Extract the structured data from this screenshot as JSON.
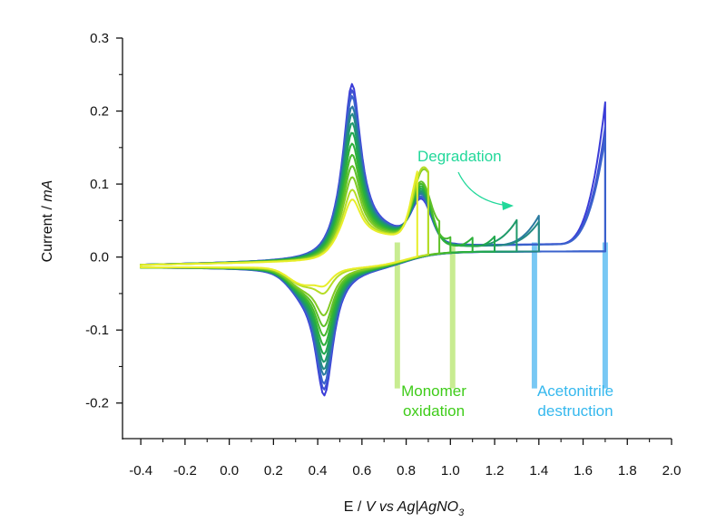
{
  "chart_data": {
    "type": "line",
    "title": "",
    "xlabel": {
      "prefix": "E / ",
      "var": "V",
      "mid": " vs ",
      "ref": "Ag|AgNO",
      "sub": "3"
    },
    "ylabel": {
      "prefix": "Current / ",
      "unit": "mA"
    },
    "xlim": [
      -0.4,
      2.0
    ],
    "ylim": [
      -0.25,
      0.3
    ],
    "x_ticks": [
      {
        "value": -0.4,
        "label": "-0.4"
      },
      {
        "value": -0.2,
        "label": "-0.2"
      },
      {
        "value": 0.0,
        "label": "0.0"
      },
      {
        "value": 0.2,
        "label": "0.2"
      },
      {
        "value": 0.4,
        "label": "0.4"
      },
      {
        "value": 0.6,
        "label": "0.6"
      },
      {
        "value": 0.8,
        "label": "0.8"
      },
      {
        "value": 1.0,
        "label": "1.0"
      },
      {
        "value": 1.2,
        "label": "1.2"
      },
      {
        "value": 1.4,
        "label": "1.4"
      },
      {
        "value": 1.6,
        "label": "1.6"
      },
      {
        "value": 1.8,
        "label": "1.8"
      },
      {
        "value": 2.0,
        "label": "2.0"
      }
    ],
    "y_ticks": [
      {
        "value": -0.2,
        "label": "-0.2"
      },
      {
        "value": -0.1,
        "label": "-0.1"
      },
      {
        "value": 0.0,
        "label": "0.0"
      },
      {
        "value": 0.1,
        "label": "0.1"
      },
      {
        "value": 0.2,
        "label": "0.2"
      },
      {
        "value": 0.3,
        "label": "0.3"
      }
    ],
    "grid": false,
    "legend": "none",
    "series": [
      {
        "vertex": 1.7,
        "ipa": 0.23,
        "ipc": -0.2,
        "iend": 0.213,
        "color": "#3a3cd8"
      },
      {
        "vertex": 1.7,
        "ipa": 0.222,
        "ipc": -0.192,
        "iend": 0.18,
        "color": "#3f52d2"
      },
      {
        "vertex": 1.7,
        "ipa": 0.214,
        "ipc": -0.184,
        "iend": 0.165,
        "color": "#3a62cc"
      },
      {
        "vertex": 1.4,
        "ipa": 0.2,
        "ipc": -0.172,
        "iend": 0.06,
        "color": "#2a7aa0"
      },
      {
        "vertex": 1.4,
        "ipa": 0.19,
        "ipc": -0.164,
        "iend": 0.052,
        "color": "#248a84"
      },
      {
        "vertex": 1.3,
        "ipa": 0.178,
        "ipc": -0.154,
        "iend": 0.055,
        "color": "#1f9a6a"
      },
      {
        "vertex": 1.2,
        "ipa": 0.165,
        "ipc": -0.143,
        "iend": 0.052,
        "color": "#22a84e"
      },
      {
        "vertex": 1.1,
        "ipa": 0.15,
        "ipc": -0.131,
        "iend": 0.05,
        "color": "#2db03a"
      },
      {
        "vertex": 1.0,
        "ipa": 0.135,
        "ipc": -0.118,
        "iend": 0.048,
        "color": "#45b92c"
      },
      {
        "vertex": 0.95,
        "ipa": 0.12,
        "ipc": -0.105,
        "iend": 0.06,
        "color": "#60c128"
      },
      {
        "vertex": 0.9,
        "ipa": 0.105,
        "ipc": -0.09,
        "iend": 0.08,
        "color": "#82ca24"
      },
      {
        "vertex": 0.9,
        "ipa": 0.088,
        "ipc": -0.06,
        "iend": 0.078,
        "color": "#b6dc26"
      },
      {
        "vertex": 0.85,
        "ipa": 0.075,
        "ipc": -0.05,
        "iend": 0.05,
        "color": "#e8ee2a"
      }
    ],
    "markers": [
      {
        "x": 0.76,
        "color": "#c6ec8c",
        "group": "monomer"
      },
      {
        "x": 1.01,
        "color": "#c6ec8c",
        "group": "monomer"
      },
      {
        "x": 1.38,
        "color": "#71c6f4",
        "group": "acetonitrile"
      },
      {
        "x": 1.7,
        "color": "#71c6f4",
        "group": "acetonitrile"
      }
    ],
    "annotations": {
      "degradation": {
        "text": "Degradation",
        "color": "#22d89a"
      },
      "monomer": {
        "line1": "Monomer",
        "line2": "oxidation",
        "color": "#3fcc1a"
      },
      "acetonitrile": {
        "line1": "Acetonitrile",
        "line2": "destruction",
        "color": "#35b8ee"
      }
    }
  }
}
